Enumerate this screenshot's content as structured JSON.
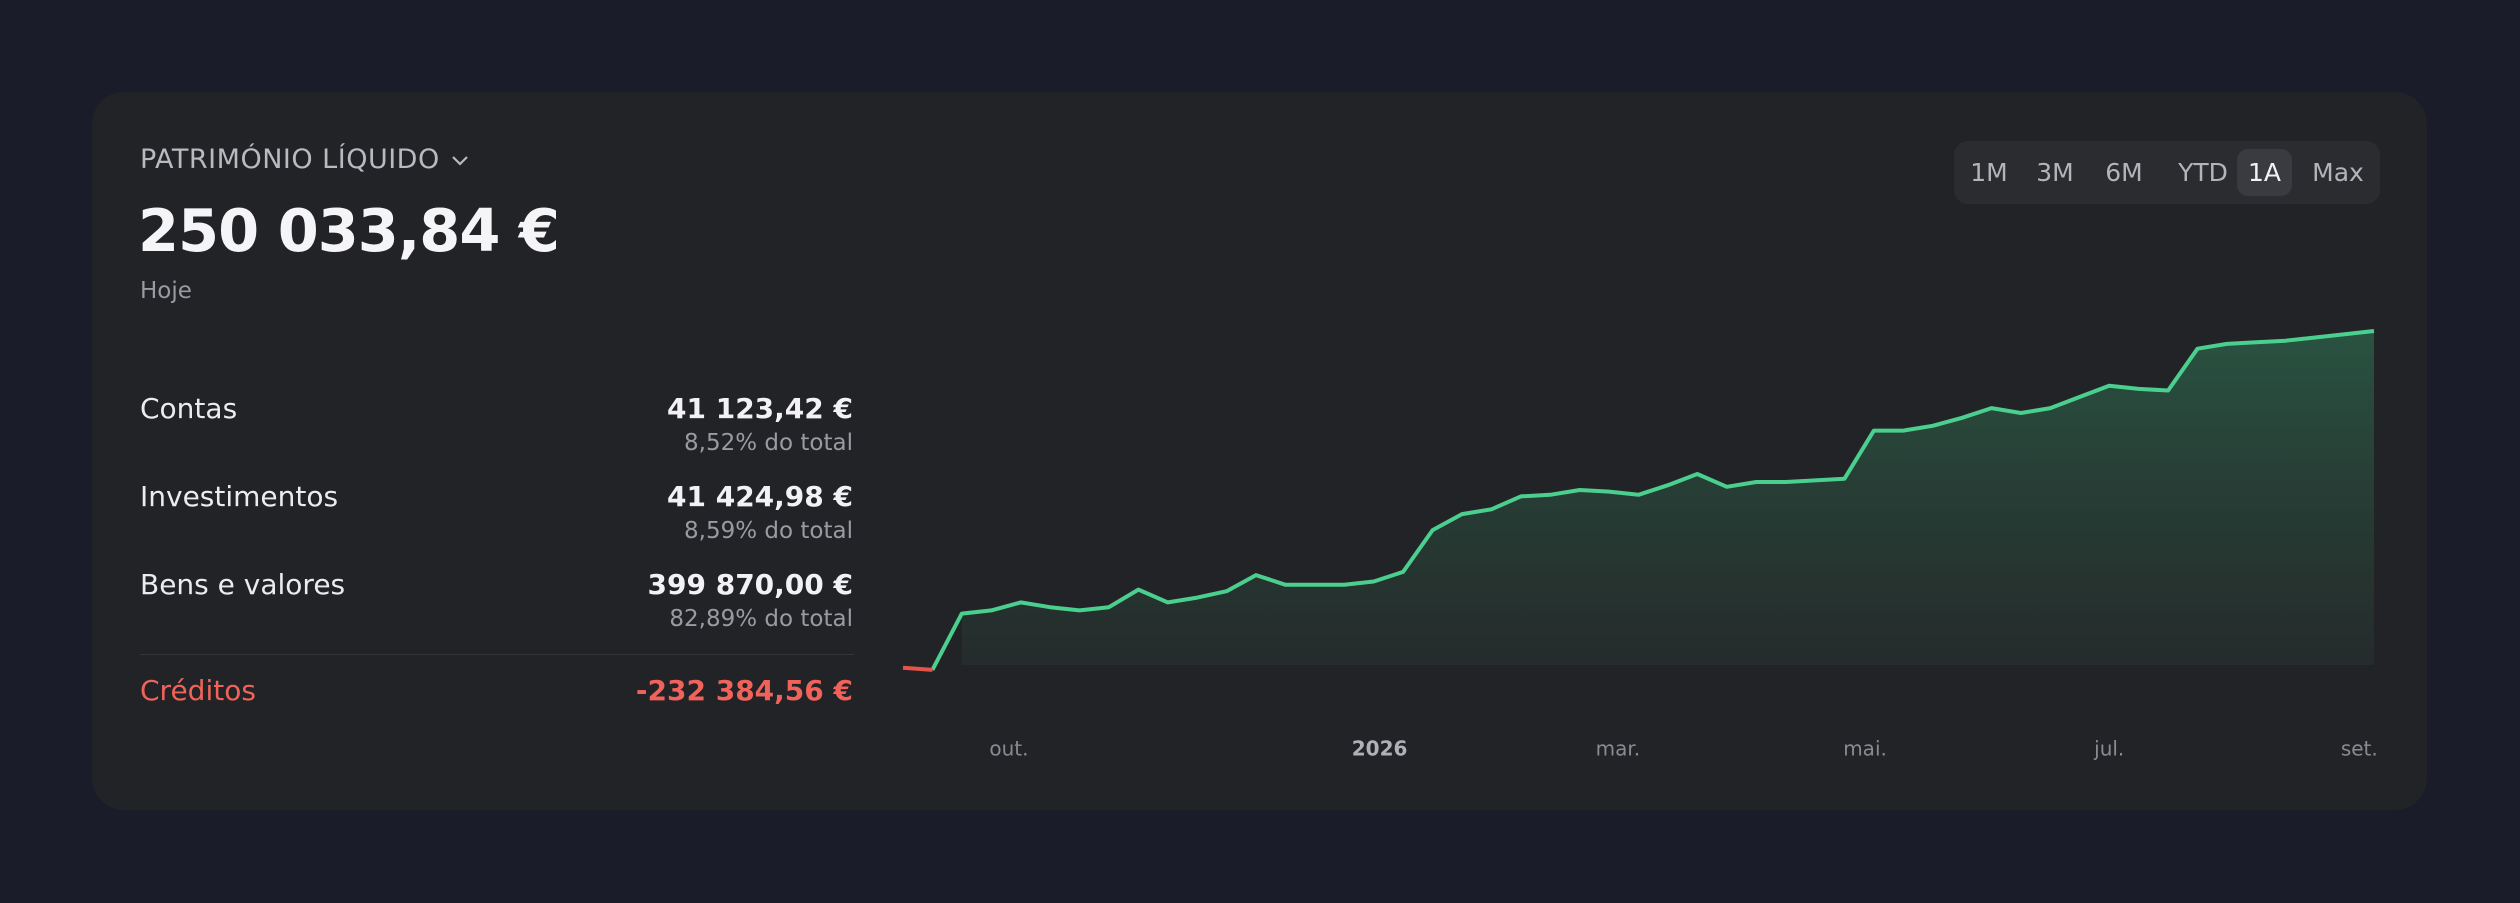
{
  "header": {
    "title": "PATRIMÓNIO LÍQUIDO",
    "total": "250 033,84 €",
    "date_label": "Hoje"
  },
  "breakdown": [
    {
      "name": "Contas",
      "value": "41 123,42 €",
      "share": "8,52% do total"
    },
    {
      "name": "Investimentos",
      "value": "41 424,98 €",
      "share": "8,59% do total"
    },
    {
      "name": "Bens e valores",
      "value": "399 870,00 €",
      "share": "82,89% do total"
    }
  ],
  "credits": {
    "name": "Créditos",
    "value": "-232 384,56 €"
  },
  "time_ranges": {
    "options": [
      "1M",
      "3M",
      "6M",
      "YTD",
      "1A",
      "Max"
    ],
    "selected_index": 4
  },
  "chart_data": {
    "type": "area",
    "color": "#4bcf8e",
    "negative_color": "#e5534b",
    "values": [
      -2000,
      -3600,
      38500,
      40900,
      46900,
      43300,
      40900,
      43300,
      56500,
      46900,
      50500,
      55300,
      67300,
      60100,
      60100,
      60100,
      62500,
      69700,
      101000,
      113000,
      116600,
      126200,
      127400,
      131000,
      129800,
      127400,
      134600,
      143000,
      133400,
      137000,
      137000,
      138200,
      139400,
      175500,
      175500,
      179100,
      185100,
      192300,
      188700,
      192300,
      200700,
      209100,
      206700,
      205500,
      236800,
      240400,
      241600,
      242800,
      245200,
      247600,
      250034
    ],
    "ylim": [
      -10000,
      260000
    ],
    "xlim": [
      0,
      50
    ],
    "xticks": [
      {
        "value": 3.6,
        "label": "out."
      },
      {
        "value": 16.2,
        "label": "2026"
      },
      {
        "value": 24.3,
        "label": "mar."
      },
      {
        "value": 32.7,
        "label": "mai."
      },
      {
        "value": 41.0,
        "label": "jul."
      },
      {
        "value": 49.5,
        "label": "set."
      }
    ]
  }
}
